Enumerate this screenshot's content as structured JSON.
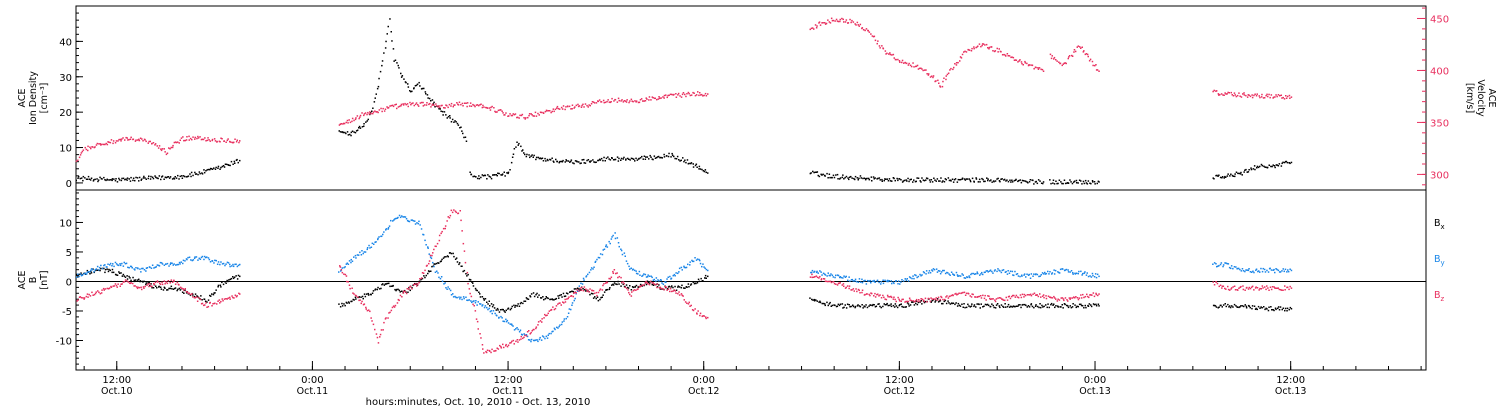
{
  "chart_data": {
    "x_axis": {
      "label": "hours:minutes, Oct. 10, 2010 - Oct. 13, 2010",
      "range_hours": [
        9.5,
        92.3
      ],
      "ticks": [
        {
          "h": 12,
          "time": "12:00",
          "day": "Oct.10"
        },
        {
          "h": 24,
          "time": "0:00",
          "day": "Oct.11"
        },
        {
          "h": 36,
          "time": "12:00",
          "day": "Oct.11"
        },
        {
          "h": 48,
          "time": "0:00",
          "day": "Oct.12"
        },
        {
          "h": 60,
          "time": "12:00",
          "day": "Oct.12"
        },
        {
          "h": 72,
          "time": "0:00",
          "day": "Oct.13"
        },
        {
          "h": 84,
          "time": "12:00",
          "day": "Oct.13"
        }
      ],
      "minor_tick_step_hours": 2
    },
    "panels": [
      {
        "id": "density-velocity",
        "type": "scatter",
        "left_axis": {
          "label_lines": [
            "ACE",
            "Ion Density",
            "[cm⁻³]"
          ],
          "range": [
            -2,
            50
          ],
          "ticks": [
            0,
            10,
            20,
            30,
            40
          ],
          "minor_step": 2
        },
        "right_axis": {
          "label_lines": [
            "ACE",
            "Velocity",
            "[km/s]"
          ],
          "range": [
            285,
            462
          ],
          "ticks": [
            300,
            350,
            400,
            450
          ],
          "minor_step": 10,
          "color": "#e8305f"
        },
        "series": [
          {
            "name": "Ion Density",
            "axis": "left",
            "color": "#000000",
            "segments": [
              {
                "x": [
                  9.5,
                  12,
                  14,
                  16,
                  18,
                  19.5
                ],
                "y": [
                  1.5,
                  1.0,
                  1.5,
                  2.0,
                  4.0,
                  6.5
                ]
              },
              {
                "x": [
                  25.6,
                  26.3,
                  27,
                  27.6,
                  28,
                  28.5,
                  28.7,
                  29,
                  29.5,
                  30,
                  30.5,
                  31,
                  31.5,
                  32,
                  32.5,
                  33,
                  33.4
                ],
                "y": [
                  15,
                  14,
                  16,
                  20,
                  28,
                  40,
                  46,
                  35,
                  30,
                  26,
                  28,
                  25,
                  22,
                  20,
                  18,
                  16,
                  12
                ]
              },
              {
                "x": [
                  33.6,
                  34,
                  35,
                  36,
                  36.5,
                  37,
                  38,
                  40,
                  42,
                  44,
                  46,
                  47.5,
                  48.2
                ],
                "y": [
                  3,
                  2,
                  2,
                  3,
                  12,
                  8,
                  7,
                  6,
                  7,
                  7,
                  8,
                  5,
                  3
                ]
              },
              {
                "x": [
                  54.5,
                  56,
                  58,
                  60,
                  62,
                  64,
                  66,
                  68,
                  68.8
                ],
                "y": [
                  3,
                  2,
                  1.5,
                  1.0,
                  1.0,
                  1.0,
                  1.0,
                  0.5,
                  0.5
                ]
              },
              {
                "x": [
                  69.2,
                  70,
                  71,
                  72.2
                ],
                "y": [
                  0.5,
                  0.5,
                  0.5,
                  0.5
                ]
              },
              {
                "x": [
                  79.2,
                  80,
                  81,
                  82,
                  83,
                  84
                ],
                "y": [
                  2,
                  2,
                  3,
                  5,
                  5,
                  6
                ]
              }
            ]
          },
          {
            "name": "Velocity",
            "axis": "right",
            "color": "#e8305f",
            "segments": [
              {
                "x": [
                  9.5,
                  10,
                  11,
                  12,
                  13,
                  14,
                  15,
                  15.5,
                  16,
                  17,
                  18,
                  19.5
                ],
                "y": [
                  315,
                  325,
                  330,
                  333,
                  335,
                  332,
                  322,
                  330,
                  335,
                  336,
                  334,
                  333
                ]
              },
              {
                "x": [
                  25.6,
                  26.3,
                  27,
                  28,
                  29,
                  30,
                  31,
                  32,
                  33,
                  34,
                  35,
                  36,
                  37,
                  38,
                  39,
                  40,
                  41,
                  42,
                  43,
                  44,
                  45,
                  46,
                  47,
                  48.2
                ],
                "y": [
                  350,
                  352,
                  358,
                  362,
                  366,
                  368,
                  368,
                  366,
                  368,
                  368,
                  364,
                  358,
                  356,
                  360,
                  364,
                  366,
                  368,
                  372,
                  372,
                  372,
                  374,
                  376,
                  378,
                  378
                ]
              },
              {
                "x": [
                  54.5,
                  55,
                  56,
                  57,
                  58,
                  59,
                  60,
                  61,
                  62,
                  62.5,
                  63,
                  64,
                  65,
                  66,
                  67,
                  68,
                  68.8
                ],
                "y": [
                  440,
                  445,
                  450,
                  448,
                  440,
                  420,
                  410,
                  405,
                  395,
                  385,
                  400,
                  418,
                  425,
                  420,
                  412,
                  405,
                  400
                ]
              },
              {
                "x": [
                  69.2,
                  70,
                  71,
                  72.2
                ],
                "y": [
                  415,
                  405,
                  425,
                  400
                ]
              },
              {
                "x": [
                  79.2,
                  80,
                  81,
                  82,
                  83,
                  84
                ],
                "y": [
                  380,
                  378,
                  377,
                  376,
                  376,
                  375
                ]
              }
            ]
          }
        ]
      },
      {
        "id": "magnetic-field",
        "type": "scatter",
        "left_axis": {
          "label_lines": [
            "ACE",
            "B",
            "[nT]"
          ],
          "range": [
            -15,
            15.5
          ],
          "ticks": [
            -10,
            -5,
            0,
            5,
            10
          ],
          "minor_step": 1,
          "zero_line": true
        },
        "series": [
          {
            "name": "B",
            "subscript": "x",
            "color": "#000000",
            "segments": [
              {
                "x": [
                  9.5,
                  10.5,
                  11.5,
                  12.5,
                  13.5,
                  14.5,
                  15.5,
                  16.5,
                  17.5,
                  18.5,
                  19.5
                ],
                "y": [
                  1,
                  2,
                  2,
                  1,
                  0,
                  -1,
                  -1,
                  -2,
                  -3,
                  0,
                  1
                ]
              },
              {
                "x": [
                  25.6,
                  26.5,
                  27.5,
                  28.5,
                  29.5,
                  30.5,
                  31.5,
                  32.5,
                  33.5,
                  34.5,
                  35.5,
                  36.5,
                  37.5,
                  38.5,
                  39.5,
                  40.5,
                  41.5,
                  42.5,
                  43.5,
                  44.5,
                  45.5,
                  46.5,
                  47.5,
                  48.2
                ],
                "y": [
                  -4,
                  -3,
                  -2,
                  0,
                  -2,
                  0,
                  3,
                  5,
                  1,
                  -3,
                  -5,
                  -4,
                  -2,
                  -3,
                  -2,
                  -1,
                  -3,
                  0,
                  -1,
                  0,
                  -1,
                  -1,
                  0,
                  1
                ]
              },
              {
                "x": [
                  54.5,
                  56,
                  58,
                  60,
                  62,
                  64,
                  66,
                  68,
                  70,
                  72.2
                ],
                "y": [
                  -3,
                  -4,
                  -4,
                  -4,
                  -3,
                  -4,
                  -4,
                  -4,
                  -4,
                  -4
                ]
              },
              {
                "x": [
                  79.2,
                  80,
                  81,
                  82,
                  83,
                  84
                ],
                "y": [
                  -4,
                  -4,
                  -4,
                  -4.5,
                  -4.5,
                  -4.5
                ]
              }
            ]
          },
          {
            "name": "B",
            "subscript": "y",
            "color": "#1a86e8",
            "segments": [
              {
                "x": [
                  9.5,
                  10.5,
                  11.5,
                  12.5,
                  13.5,
                  14.5,
                  15.5,
                  16.5,
                  17.5,
                  18.5,
                  19.5
                ],
                "y": [
                  1,
                  2,
                  3,
                  3,
                  2,
                  3,
                  3,
                  4,
                  4,
                  3,
                  3
                ]
              },
              {
                "x": [
                  25.6,
                  26.5,
                  27.5,
                  28.5,
                  29,
                  29.5,
                  30.5,
                  31.5,
                  32.5,
                  33.5,
                  34.5,
                  35.5,
                  36.5,
                  37.5,
                  38.5,
                  39.5,
                  40.5,
                  41.5,
                  42.5,
                  43.5,
                  44.5,
                  45.5,
                  46.5,
                  47.5,
                  48.2
                ],
                "y": [
                  2,
                  4,
                  6,
                  9,
                  11,
                  11,
                  10,
                  2,
                  -2,
                  -3,
                  -4,
                  -6,
                  -8,
                  -10,
                  -9,
                  -6,
                  0,
                  4,
                  8,
                  2,
                  1,
                  0,
                  2,
                  4,
                  2
                ]
              },
              {
                "x": [
                  54.5,
                  56,
                  58,
                  60,
                  62,
                  64,
                  66,
                  68,
                  70,
                  72.2
                ],
                "y": [
                  2,
                  1,
                  0,
                  0,
                  2,
                  1,
                  2,
                  1,
                  2,
                  1
                ]
              },
              {
                "x": [
                  79.2,
                  80,
                  81,
                  82,
                  83,
                  84
                ],
                "y": [
                  3,
                  3,
                  2,
                  2,
                  2,
                  2
                ]
              }
            ]
          },
          {
            "name": "B",
            "subscript": "z",
            "color": "#e8305f",
            "segments": [
              {
                "x": [
                  9.5,
                  10.5,
                  11.5,
                  12.5,
                  13.5,
                  14.5,
                  15.5,
                  16.5,
                  17.5,
                  18.5,
                  19.5
                ],
                "y": [
                  -3,
                  -2,
                  -1,
                  0,
                  -1,
                  0,
                  0,
                  -2,
                  -4,
                  -3,
                  -2
                ]
              },
              {
                "x": [
                  25.6,
                  26.5,
                  27.5,
                  28,
                  28.5,
                  29.5,
                  30.5,
                  31.5,
                  32.5,
                  33,
                  33.5,
                  34.5,
                  35.5,
                  36.5,
                  37.5,
                  38.5,
                  39.5,
                  40.5,
                  41.5,
                  42.5,
                  43.5,
                  44.5,
                  45.5,
                  46.5,
                  47.5,
                  48.2
                ],
                "y": [
                  3,
                  -2,
                  -5,
                  -10,
                  -6,
                  -2,
                  0,
                  6,
                  12,
                  12,
                  0,
                  -12,
                  -11,
                  -10,
                  -8,
                  -5,
                  -3,
                  -1,
                  -2,
                  2,
                  -2,
                  0,
                  -1,
                  -2,
                  -5,
                  -6
                ]
              },
              {
                "x": [
                  54.5,
                  56,
                  58,
                  60,
                  62,
                  64,
                  66,
                  68,
                  70,
                  72.2
                ],
                "y": [
                  1,
                  0,
                  -2,
                  -3,
                  -3,
                  -2,
                  -3,
                  -2,
                  -3,
                  -2
                ]
              },
              {
                "x": [
                  79.2,
                  80,
                  81,
                  82,
                  83,
                  84
                ],
                "y": [
                  0,
                  -1,
                  -1,
                  -1,
                  -1,
                  -1
                ]
              }
            ]
          }
        ]
      }
    ]
  }
}
